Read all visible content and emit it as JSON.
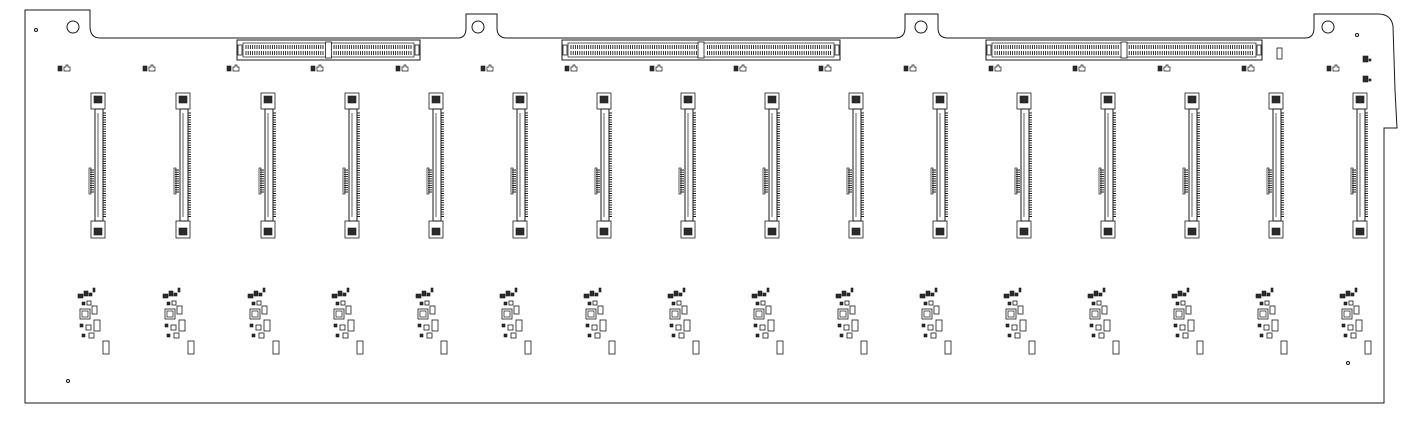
{
  "drawing": {
    "line_color": "#1a1a1a",
    "background_color": "#ffffff",
    "mounting_holes": 4,
    "top_edge_connectors": 3,
    "drive_bays": 16
  }
}
